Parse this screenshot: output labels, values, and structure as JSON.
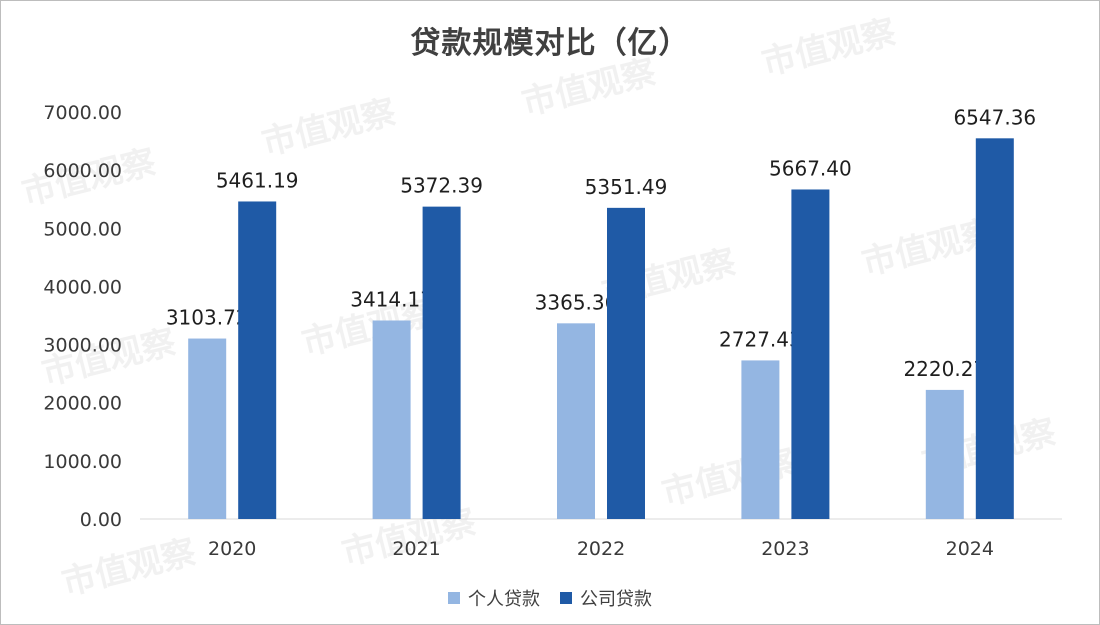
{
  "title": "贷款规模对比（亿）",
  "watermark": "市值观察",
  "chart_data": {
    "type": "bar",
    "categories": [
      "2020",
      "2021",
      "2022",
      "2023",
      "2024"
    ],
    "series": [
      {
        "name": "个人贷款",
        "color": "#94b6e2",
        "values": [
          3103.72,
          3414.17,
          3365.36,
          2727.43,
          2220.27
        ]
      },
      {
        "name": "公司贷款",
        "color": "#1f5aa6",
        "values": [
          5461.19,
          5372.39,
          5351.49,
          5667.4,
          6547.36
        ]
      }
    ],
    "ylim": [
      0,
      7000
    ],
    "yticks": [
      "0.00",
      "1000.00",
      "2000.00",
      "3000.00",
      "4000.00",
      "5000.00",
      "6000.00",
      "7000.00"
    ],
    "grid": false,
    "legend_position": "bottom"
  }
}
